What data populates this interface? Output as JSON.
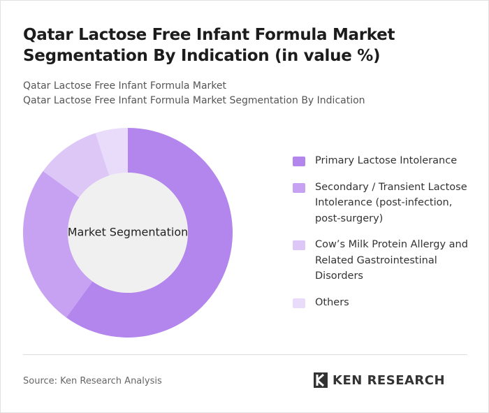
{
  "chart_data": {
    "type": "donut",
    "title": "Qatar Lactose Free Infant Formula Market Segmentation By Indication (in value %)",
    "subtitle": [
      "Qatar Lactose Free Infant Formula Market",
      "Qatar Lactose Free Infant Formula Market Segmentation By Indication"
    ],
    "center_label": "Market Segmentation",
    "categories": [
      "Primary Lactose Intolerance",
      "Secondary / Transient Lactose Intolerance (post-infection, post-surgery)",
      "Cow’s Milk Protein Allergy and Related Gastrointestinal Disorders",
      "Others"
    ],
    "values": [
      60,
      25,
      10,
      5
    ],
    "colors": [
      "#b386ed",
      "#c7a1f2",
      "#dcc7f7",
      "#e9dcfa"
    ],
    "source": "Source: Ken Research Analysis",
    "logo": "KEN RESEARCH"
  }
}
